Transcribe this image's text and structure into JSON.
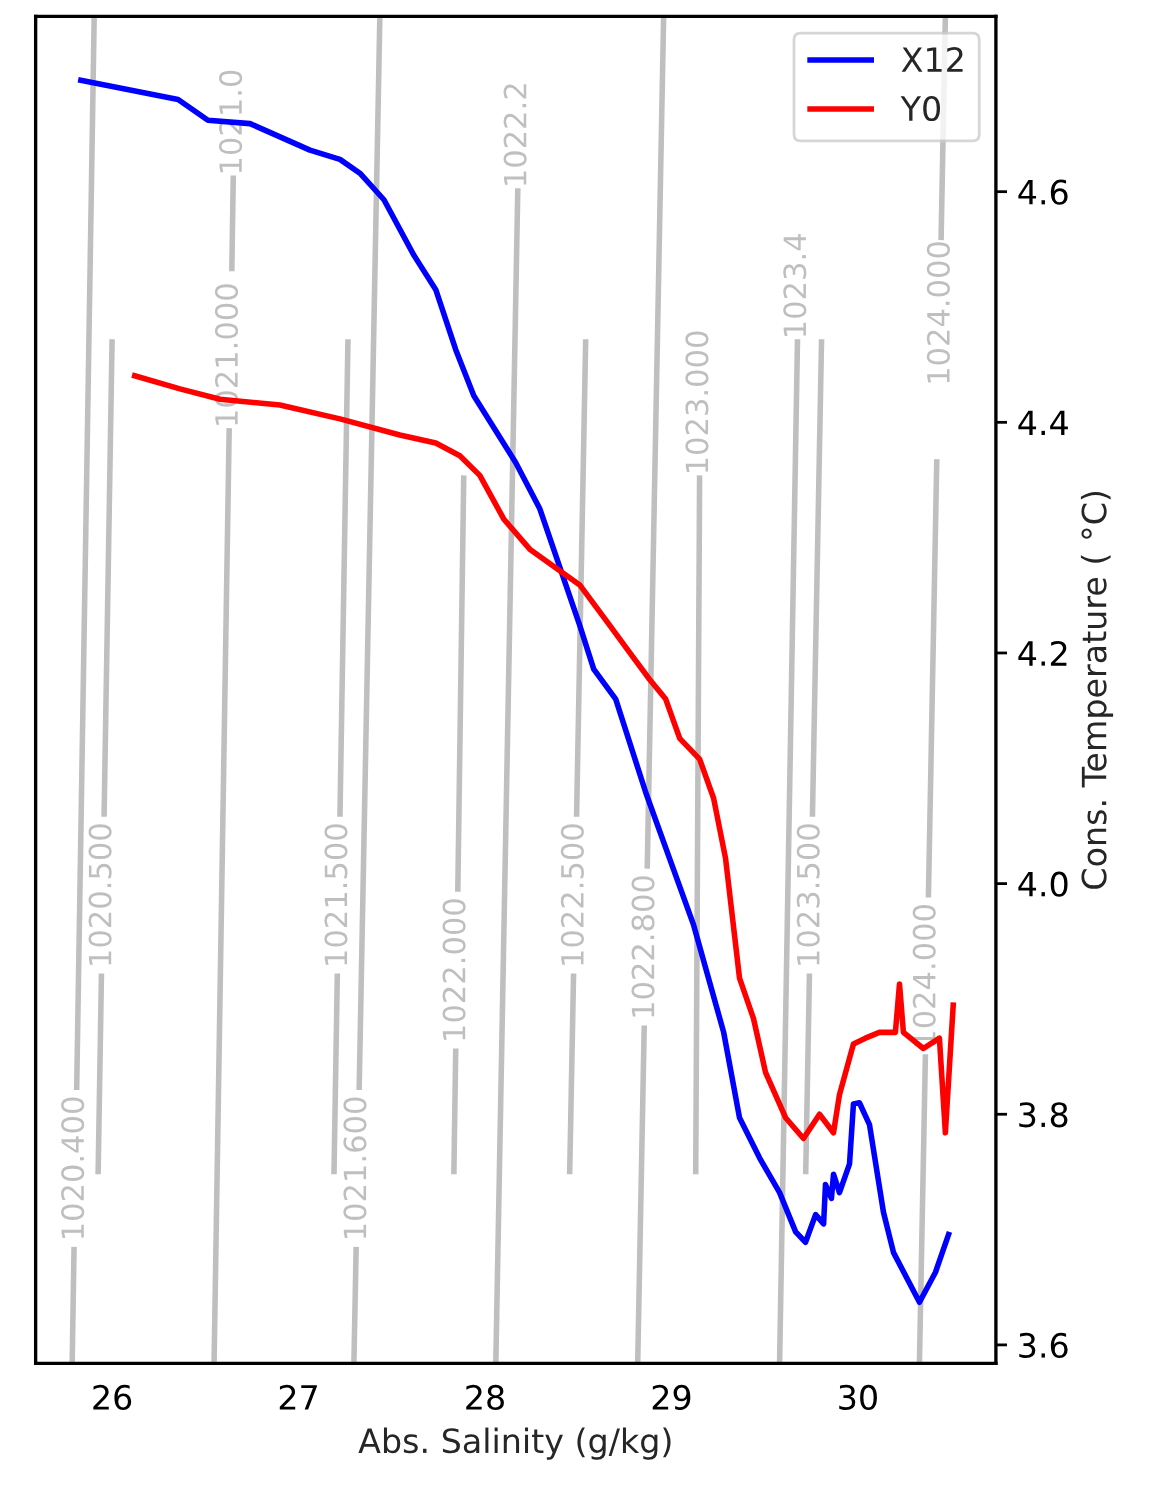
{
  "chart_data": {
    "type": "line",
    "xlabel": "Abs. Salinity (g/kg)",
    "ylabel": "Cons. Temperature ( °C)",
    "xlim": [
      25.59,
      30.74
    ],
    "ylim": [
      3.584,
      4.752
    ],
    "xticks": [
      26,
      27,
      28,
      29,
      30
    ],
    "yticks": [
      3.6,
      3.8,
      {
        "value": 4.0,
        "label": "4.0"
      },
      4.2,
      4.4,
      4.6
    ],
    "grid": false,
    "legend": "top right",
    "series": [
      {
        "name": "1020.400",
        "color": "#bfbfbf",
        "x": [
          25.786,
          25.796,
          null,
          25.81,
          25.904
        ],
        "values": [
          3.585,
          3.685,
          null,
          3.821,
          4.752
        ]
      },
      {
        "name": "1020.500",
        "color": "#bfbfbf",
        "x": [
          25.925,
          25.943,
          null,
          25.957,
          26.0
        ],
        "values": [
          3.748,
          3.922,
          null,
          4.058,
          4.472
        ]
      },
      {
        "name": "1021.000",
        "color": "#bfbfbf",
        "x": [
          26.547,
          26.628,
          null
        ],
        "values": [
          3.585,
          4.395,
          null
        ]
      },
      {
        "name": "1021.0",
        "color": "#bfbfbf",
        "x": [
          26.642,
          26.65,
          null
        ],
        "values": [
          4.531,
          4.614,
          null
        ]
      },
      {
        "name": "1021.500",
        "color": "#bfbfbf",
        "x": [
          27.19,
          27.208,
          null,
          27.222,
          27.265
        ],
        "values": [
          3.748,
          3.922,
          null,
          4.058,
          4.472
        ]
      },
      {
        "name": "1021.600",
        "color": "#bfbfbf",
        "x": [
          27.297,
          27.309,
          null,
          27.325,
          27.436
        ],
        "values": [
          3.585,
          3.685,
          null,
          3.821,
          4.752
        ]
      },
      {
        "name": "1022.000",
        "color": "#bfbfbf",
        "x": [
          27.833,
          27.843,
          null,
          27.854,
          27.886
        ],
        "values": [
          3.748,
          3.857,
          null,
          3.993,
          4.354
        ]
      },
      {
        "name": "1022.2",
        "color": "#bfbfbf",
        "x": [
          28.058,
          28.176,
          null
        ],
        "values": [
          3.585,
          4.603,
          null
        ]
      },
      {
        "name": "1022.500",
        "color": "#bfbfbf",
        "x": [
          28.454,
          28.475,
          null,
          28.491,
          28.54
        ],
        "values": [
          3.748,
          3.922,
          null,
          4.058,
          4.472
        ]
      },
      {
        "name": "1022.800",
        "color": "#bfbfbf",
        "x": [
          28.819,
          28.854,
          null,
          28.87,
          28.958
        ],
        "values": [
          3.585,
          3.877,
          null,
          4.013,
          4.752
        ]
      },
      {
        "name": "1023.000",
        "color": "#bfbfbf",
        "x": [
          29.13,
          29.151,
          null
        ],
        "values": [
          3.748,
          4.354,
          null
        ]
      },
      {
        "name": "1023.4",
        "color": "#bfbfbf",
        "x": [
          29.58,
          29.676,
          null
        ],
        "values": [
          3.585,
          4.472,
          null
        ]
      },
      {
        "name": "1023.500",
        "color": "#bfbfbf",
        "x": [
          29.72,
          29.74,
          null,
          29.756,
          29.805
        ],
        "values": [
          3.748,
          3.922,
          null,
          4.058,
          4.472
        ]
      },
      {
        "name": "1024.000",
        "color": "#bfbfbf",
        "x": [
          30.33,
          30.362,
          null,
          30.378,
          30.423
        ],
        "values": [
          3.585,
          3.852,
          null,
          3.988,
          4.368
        ]
      },
      {
        "name": "1024.000",
        "color": "#bfbfbf",
        "x": [
          null,
          30.446,
          30.469
        ],
        "values": [
          null,
          4.558,
          4.752
        ]
      },
      {
        "name": "X12",
        "color": "#0000ff",
        "x": [
          25.818,
          26.354,
          26.514,
          26.74,
          27.061,
          27.222,
          27.329,
          27.458,
          27.618,
          27.736,
          27.843,
          27.94,
          28.165,
          28.294,
          28.508,
          28.583,
          28.701,
          28.862,
          29.119,
          29.28,
          29.365,
          29.473,
          29.58,
          29.666,
          29.719,
          29.773,
          29.816,
          29.826,
          29.858,
          29.869,
          29.901,
          29.955,
          29.976,
          30.008,
          30.062,
          30.137,
          30.191,
          30.33,
          30.416,
          30.491
        ],
        "values": [
          4.697,
          4.68,
          4.662,
          4.659,
          4.636,
          4.628,
          4.616,
          4.593,
          4.545,
          4.515,
          4.463,
          4.423,
          4.365,
          4.325,
          4.224,
          4.186,
          4.16,
          4.079,
          3.964,
          3.871,
          3.797,
          3.762,
          3.732,
          3.698,
          3.689,
          3.713,
          3.705,
          3.739,
          3.727,
          3.748,
          3.732,
          3.757,
          3.809,
          3.81,
          3.791,
          3.715,
          3.68,
          3.637,
          3.663,
          3.698
        ]
      },
      {
        "name": "Y0",
        "color": "#ff0000",
        "x": [
          26.107,
          26.364,
          26.579,
          26.9,
          27.222,
          27.543,
          27.736,
          27.865,
          27.972,
          28.101,
          28.24,
          28.508,
          28.669,
          28.787,
          28.883,
          28.969,
          29.044,
          29.151,
          29.226,
          29.29,
          29.365,
          29.44,
          29.505,
          29.612,
          29.708,
          29.794,
          29.869,
          29.901,
          29.976,
          30.04,
          30.115,
          30.201,
          30.223,
          30.244,
          30.351,
          30.437,
          30.469,
          30.512
        ],
        "values": [
          4.441,
          4.429,
          4.42,
          4.415,
          4.403,
          4.389,
          4.382,
          4.371,
          4.354,
          4.316,
          4.29,
          4.259,
          4.224,
          4.198,
          4.177,
          4.16,
          4.126,
          4.108,
          4.074,
          4.022,
          3.918,
          3.883,
          3.836,
          3.797,
          3.779,
          3.8,
          3.784,
          3.817,
          3.861,
          3.866,
          3.871,
          3.871,
          3.913,
          3.871,
          3.857,
          3.866,
          3.784,
          3.897
        ]
      }
    ]
  }
}
